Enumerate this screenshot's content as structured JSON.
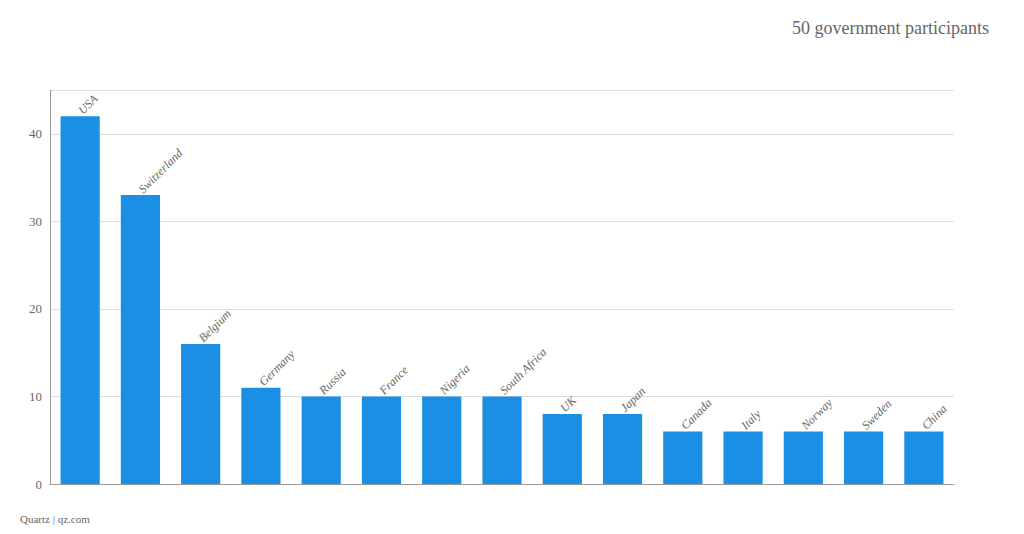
{
  "chart_data": {
    "type": "bar",
    "title": "50 government participants",
    "annotations": [
      "Quartz | qz.com"
    ],
    "categories": [
      "USA",
      "Switzerland",
      "Belgium",
      "Germany",
      "Russia",
      "France",
      "Nigeria",
      "South Africa",
      "UK",
      "Japan",
      "Canada",
      "Italy",
      "Norway",
      "Sweden",
      "China"
    ],
    "values": [
      42,
      33,
      16,
      11,
      10,
      10,
      10,
      10,
      8,
      8,
      6,
      6,
      6,
      6,
      6
    ],
    "color": "#1a8fe3",
    "ylim": [
      0,
      45
    ],
    "yticks": [
      0,
      10,
      20,
      30,
      40
    ],
    "grid": true,
    "tick_labels": "y"
  }
}
